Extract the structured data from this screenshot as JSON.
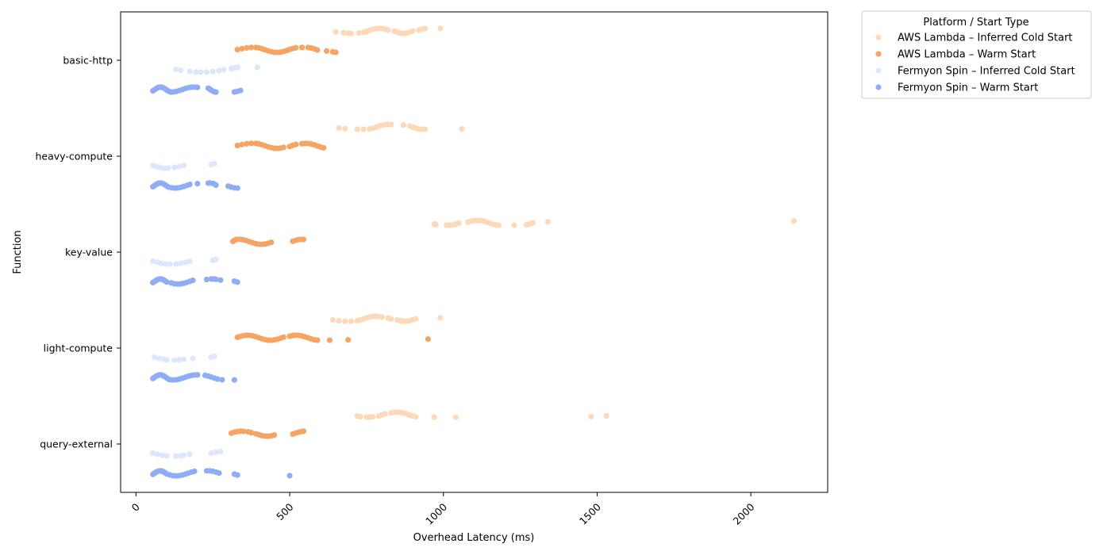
{
  "chart_data": {
    "type": "scatter",
    "title": "",
    "xlabel": "Overhead Latency (ms)",
    "ylabel": "Function",
    "xlim": [
      -50,
      2250
    ],
    "xticks": [
      0,
      500,
      1000,
      1500,
      2000
    ],
    "categories": [
      "basic-http",
      "heavy-compute",
      "key-value",
      "light-compute",
      "query-external"
    ],
    "legend": {
      "title": "Platform / Start Type",
      "placement": "outside-top-right"
    },
    "grid": false,
    "series": [
      {
        "name": "AWS Lambda – Inferred Cold Start",
        "color": "#fcd9b8",
        "points": {
          "basic-http": [
            650,
            675,
            690,
            700,
            725,
            740,
            750,
            760,
            770,
            780,
            790,
            800,
            810,
            820,
            840,
            850,
            860,
            870,
            875,
            880,
            890,
            900,
            920,
            930,
            940,
            990
          ],
          "heavy-compute": [
            660,
            680,
            720,
            740,
            760,
            770,
            780,
            790,
            800,
            810,
            820,
            830,
            870,
            890,
            900,
            910,
            920,
            930,
            940,
            1060
          ],
          "key-value": [
            970,
            975,
            1010,
            1020,
            1030,
            1040,
            1050,
            1080,
            1090,
            1100,
            1110,
            1120,
            1130,
            1140,
            1150,
            1160,
            1170,
            1180,
            1230,
            1270,
            1280,
            1290,
            1340,
            2140
          ],
          "light-compute": [
            640,
            660,
            680,
            700,
            720,
            730,
            740,
            750,
            760,
            770,
            780,
            790,
            800,
            820,
            830,
            850,
            860,
            870,
            880,
            890,
            900,
            910,
            990
          ],
          "query-external": [
            720,
            730,
            750,
            760,
            770,
            790,
            800,
            810,
            830,
            840,
            850,
            860,
            870,
            880,
            890,
            900,
            910,
            970,
            1040,
            1480,
            1530
          ]
        }
      },
      {
        "name": "AWS Lambda – Warm Start",
        "color": "#f5a463",
        "points": {
          "basic-http": [
            330,
            345,
            360,
            375,
            390,
            400,
            410,
            420,
            430,
            440,
            450,
            460,
            470,
            480,
            490,
            500,
            510,
            520,
            540,
            560,
            570,
            580,
            590,
            620,
            640,
            650
          ],
          "heavy-compute": [
            330,
            345,
            360,
            375,
            390,
            400,
            410,
            420,
            430,
            440,
            450,
            460,
            470,
            480,
            500,
            510,
            520,
            540,
            550,
            560,
            570,
            580,
            590,
            600,
            610
          ],
          "key-value": [
            315,
            320,
            325,
            330,
            340,
            350,
            360,
            370,
            380,
            390,
            400,
            410,
            420,
            430,
            440,
            510,
            520,
            530,
            540,
            545
          ],
          "light-compute": [
            330,
            340,
            350,
            360,
            370,
            380,
            390,
            400,
            410,
            420,
            430,
            440,
            450,
            460,
            470,
            480,
            500,
            510,
            520,
            530,
            540,
            550,
            560,
            570,
            580,
            590,
            630,
            690,
            950
          ],
          "query-external": [
            310,
            320,
            330,
            340,
            350,
            365,
            375,
            390,
            400,
            410,
            420,
            430,
            440,
            450,
            510,
            520,
            530,
            540,
            545
          ]
        }
      },
      {
        "name": "Fermyon Spin – Inferred Cold Start",
        "color": "#dde7fb",
        "points": {
          "basic-http": [
            130,
            145,
            175,
            195,
            210,
            230,
            250,
            270,
            285,
            310,
            320,
            330,
            395
          ],
          "heavy-compute": [
            55,
            65,
            75,
            85,
            95,
            105,
            125,
            140,
            155,
            245,
            255
          ],
          "key-value": [
            55,
            70,
            80,
            95,
            110,
            130,
            145,
            160,
            175,
            250,
            260
          ],
          "light-compute": [
            60,
            75,
            90,
            100,
            125,
            140,
            155,
            185,
            245,
            255
          ],
          "query-external": [
            55,
            70,
            85,
            100,
            130,
            145,
            155,
            175,
            245,
            260,
            275
          ]
        }
      },
      {
        "name": "Fermyon Spin – Warm Start",
        "color": "#8fadf5",
        "points": {
          "basic-http": [
            55,
            60,
            65,
            70,
            75,
            80,
            85,
            90,
            95,
            100,
            105,
            110,
            115,
            120,
            130,
            140,
            150,
            160,
            170,
            180,
            190,
            200,
            235,
            240,
            245,
            250,
            255,
            260,
            320,
            330,
            340
          ],
          "heavy-compute": [
            55,
            60,
            65,
            70,
            75,
            80,
            85,
            90,
            95,
            100,
            105,
            115,
            125,
            135,
            145,
            155,
            165,
            175,
            200,
            235,
            240,
            250,
            255,
            260,
            300,
            310,
            320,
            330
          ],
          "key-value": [
            55,
            60,
            65,
            70,
            75,
            80,
            85,
            90,
            95,
            100,
            115,
            125,
            135,
            145,
            155,
            165,
            175,
            185,
            230,
            245,
            255,
            260,
            275,
            320,
            330
          ],
          "light-compute": [
            55,
            60,
            65,
            70,
            75,
            80,
            85,
            90,
            95,
            100,
            105,
            110,
            120,
            130,
            140,
            150,
            160,
            170,
            180,
            190,
            200,
            225,
            235,
            245,
            255,
            265,
            280,
            320
          ],
          "query-external": [
            55,
            60,
            65,
            70,
            75,
            80,
            85,
            90,
            95,
            100,
            110,
            120,
            130,
            140,
            150,
            160,
            170,
            180,
            190,
            230,
            240,
            250,
            260,
            270,
            320,
            330,
            500
          ]
        }
      }
    ]
  }
}
